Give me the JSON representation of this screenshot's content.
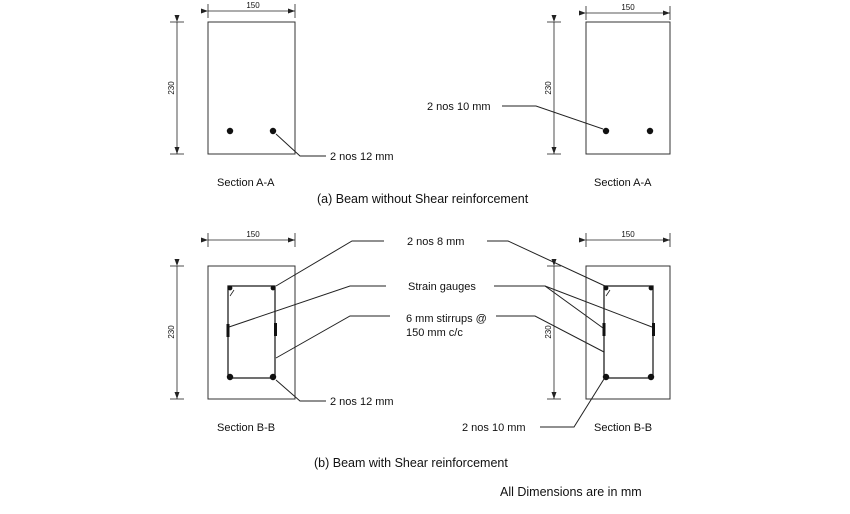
{
  "dimensions": {
    "width": "150",
    "height": "230"
  },
  "labels": {
    "a_left_bars": "2 nos 12 mm",
    "a_right_bars": "2 nos 10 mm",
    "top_bars": "2 nos 8 mm",
    "strain_gauges": "Strain gauges",
    "stirrups_line1": "6 mm stirrups @",
    "stirrups_line2": "150 mm c/c",
    "b_left_bars": "2 nos 12 mm",
    "b_right_bars": "2 nos 10 mm"
  },
  "sections": {
    "a_left": "Section A-A",
    "a_right": "Section A-A",
    "b_left": "Section B-B",
    "b_right": "Section B-B"
  },
  "captions": {
    "a": "(a) Beam without Shear reinforcement",
    "b": "(b) Beam with Shear reinforcement",
    "note": "All Dimensions are in mm"
  }
}
